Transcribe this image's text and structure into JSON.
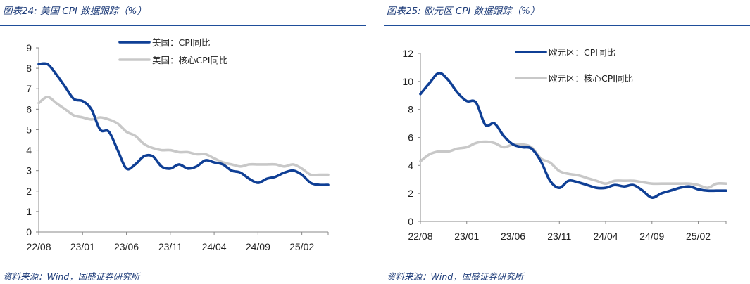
{
  "chart_data": [
    {
      "type": "line",
      "title": "图表24: 美国 CPI 数据跟踪（%）",
      "source": "资料来源：Wind，国盛证券研究所",
      "categories": [
        "22/08",
        "23/01",
        "23/06",
        "23/11",
        "24/04",
        "24/09",
        "25/02"
      ],
      "x": [
        "22/08",
        "22/09",
        "22/10",
        "22/11",
        "22/12",
        "23/01",
        "23/02",
        "23/03",
        "23/04",
        "23/05",
        "23/06",
        "23/07",
        "23/08",
        "23/09",
        "23/10",
        "23/11",
        "23/12",
        "24/01",
        "24/02",
        "24/03",
        "24/04",
        "24/05",
        "24/06",
        "24/07",
        "24/08",
        "24/09",
        "24/10",
        "24/11",
        "24/12",
        "25/01",
        "25/02",
        "25/03",
        "25/04",
        "25/05"
      ],
      "ylim": [
        0,
        9
      ],
      "yticks": [
        0,
        1,
        2,
        3,
        4,
        5,
        6,
        7,
        8,
        9
      ],
      "legend_position": "top-center",
      "series": [
        {
          "name": "美国：CPI同比",
          "color": "#0f3f95",
          "values": [
            8.2,
            8.2,
            7.7,
            7.1,
            6.5,
            6.4,
            6.0,
            5.0,
            4.9,
            4.0,
            3.1,
            3.3,
            3.7,
            3.7,
            3.2,
            3.1,
            3.3,
            3.1,
            3.2,
            3.5,
            3.4,
            3.3,
            3.0,
            2.9,
            2.6,
            2.4,
            2.6,
            2.7,
            2.9,
            3.0,
            2.8,
            2.4,
            2.3,
            2.3
          ]
        },
        {
          "name": "美国：核心CPI同比",
          "color": "#c8c8c8",
          "values": [
            6.3,
            6.6,
            6.3,
            6.0,
            5.7,
            5.6,
            5.5,
            5.6,
            5.5,
            5.3,
            4.9,
            4.7,
            4.3,
            4.1,
            4.0,
            4.0,
            3.9,
            3.9,
            3.8,
            3.8,
            3.6,
            3.4,
            3.3,
            3.2,
            3.3,
            3.3,
            3.3,
            3.3,
            3.2,
            3.3,
            3.1,
            2.8,
            2.8,
            2.8
          ]
        }
      ]
    },
    {
      "type": "line",
      "title": "图表25: 欧元区 CPI 数据跟踪（%）",
      "source": "资料来源：Wind，国盛证券研究所",
      "categories": [
        "22/08",
        "23/01",
        "23/06",
        "23/11",
        "24/04",
        "24/09",
        "25/02"
      ],
      "x": [
        "22/08",
        "22/09",
        "22/10",
        "22/11",
        "22/12",
        "23/01",
        "23/02",
        "23/03",
        "23/04",
        "23/05",
        "23/06",
        "23/07",
        "23/08",
        "23/09",
        "23/10",
        "23/11",
        "23/12",
        "24/01",
        "24/02",
        "24/03",
        "24/04",
        "24/05",
        "24/06",
        "24/07",
        "24/08",
        "24/09",
        "24/10",
        "24/11",
        "24/12",
        "25/01",
        "25/02",
        "25/03",
        "25/04",
        "25/05"
      ],
      "ylim": [
        0,
        12
      ],
      "yticks": [
        0,
        2,
        4,
        6,
        8,
        10,
        12
      ],
      "legend_position": "top-center",
      "series": [
        {
          "name": "欧元区：CPI同比",
          "color": "#0f3f95",
          "values": [
            9.1,
            9.9,
            10.6,
            10.1,
            9.2,
            8.6,
            8.5,
            6.9,
            7.0,
            6.1,
            5.5,
            5.3,
            5.2,
            4.3,
            2.9,
            2.4,
            2.9,
            2.8,
            2.6,
            2.4,
            2.4,
            2.6,
            2.5,
            2.6,
            2.2,
            1.7,
            2.0,
            2.2,
            2.4,
            2.5,
            2.3,
            2.2,
            2.2,
            2.2
          ]
        },
        {
          "name": "欧元区：核心CPI同比",
          "color": "#c8c8c8",
          "values": [
            4.3,
            4.8,
            5.0,
            5.0,
            5.2,
            5.3,
            5.6,
            5.7,
            5.6,
            5.3,
            5.5,
            5.5,
            5.3,
            4.5,
            4.2,
            3.6,
            3.4,
            3.3,
            3.1,
            2.9,
            2.7,
            2.9,
            2.9,
            2.9,
            2.8,
            2.7,
            2.7,
            2.7,
            2.7,
            2.7,
            2.6,
            2.4,
            2.7,
            2.7
          ]
        }
      ]
    }
  ]
}
